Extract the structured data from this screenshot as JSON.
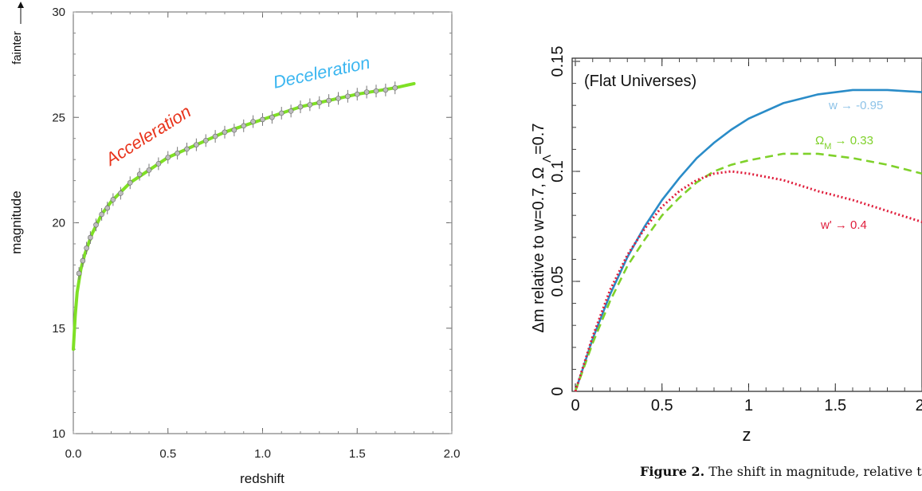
{
  "caption": {
    "label": "Figure 2.",
    "text": "The shift in magnitude, relative to a co"
  },
  "chart_data": [
    {
      "type": "scatter",
      "title": "",
      "xlabel": "redshift",
      "ylabel": "magnitude",
      "side_label": "fainter",
      "xlim": [
        0.0,
        2.0
      ],
      "ylim": [
        10,
        30
      ],
      "xticks": [
        "0.0",
        "0.5",
        "1.0",
        "1.5",
        "2.0"
      ],
      "yticks": [
        "10",
        "15",
        "20",
        "25",
        "30"
      ],
      "grid": false,
      "annotations": [
        {
          "text": "Acceleration",
          "color": "#e8341c"
        },
        {
          "text": "Deceleration",
          "color": "#3bb6f0"
        }
      ],
      "series": [
        {
          "kind": "line",
          "color": "#7fe025",
          "x": [
            0.0,
            0.01,
            0.02,
            0.04,
            0.06,
            0.08,
            0.1,
            0.15,
            0.2,
            0.3,
            0.4,
            0.5,
            0.6,
            0.7,
            0.8,
            0.9,
            1.0,
            1.1,
            1.2,
            1.3,
            1.4,
            1.5,
            1.6,
            1.7,
            1.8
          ],
          "y": [
            14.0,
            15.6,
            16.7,
            17.8,
            18.5,
            19.0,
            19.5,
            20.4,
            21.0,
            21.9,
            22.5,
            23.1,
            23.5,
            23.9,
            24.3,
            24.6,
            24.9,
            25.2,
            25.5,
            25.7,
            25.9,
            26.1,
            26.25,
            26.4,
            26.6
          ]
        },
        {
          "kind": "scatter",
          "color": "#9a9a9a",
          "x": [
            0.03,
            0.05,
            0.07,
            0.09,
            0.12,
            0.15,
            0.18,
            0.21,
            0.25,
            0.3,
            0.35,
            0.4,
            0.45,
            0.5,
            0.55,
            0.6,
            0.65,
            0.7,
            0.75,
            0.8,
            0.85,
            0.9,
            0.95,
            1.0,
            1.05,
            1.1,
            1.15,
            1.2,
            1.25,
            1.3,
            1.35,
            1.4,
            1.45,
            1.5,
            1.55,
            1.6,
            1.65,
            1.7
          ],
          "y": [
            17.6,
            18.2,
            18.8,
            19.3,
            19.9,
            20.4,
            20.7,
            21.1,
            21.4,
            21.9,
            22.3,
            22.5,
            22.8,
            23.1,
            23.3,
            23.5,
            23.7,
            23.9,
            24.1,
            24.3,
            24.4,
            24.6,
            24.8,
            24.9,
            25.0,
            25.2,
            25.3,
            25.5,
            25.6,
            25.7,
            25.8,
            25.9,
            26.0,
            26.1,
            26.2,
            26.25,
            26.3,
            26.4
          ],
          "error": 0.3
        }
      ]
    },
    {
      "type": "line",
      "title": "",
      "xlabel": "z",
      "ylabel": "Δm relative to w=0.7, ΩΛ=0.7",
      "xlim": [
        0,
        2.0
      ],
      "ylim": [
        0,
        0.15
      ],
      "xticks": [
        "0",
        "0.5",
        "1",
        "1.5",
        "2."
      ],
      "yticks": [
        "0",
        "0.05",
        "0.1",
        "0.15"
      ],
      "grid": false,
      "annotations": [
        {
          "text": "(Flat Universes)",
          "color": "#111111"
        }
      ],
      "series": [
        {
          "name": "w → -0.95",
          "color": "#2a8cc8",
          "style": "solid",
          "x": [
            0,
            0.1,
            0.2,
            0.3,
            0.4,
            0.5,
            0.6,
            0.7,
            0.8,
            0.9,
            1.0,
            1.2,
            1.4,
            1.6,
            1.8,
            2.0
          ],
          "y": [
            0,
            0.024,
            0.044,
            0.061,
            0.075,
            0.087,
            0.097,
            0.106,
            0.113,
            0.119,
            0.124,
            0.131,
            0.135,
            0.137,
            0.137,
            0.136
          ]
        },
        {
          "name": "ΩM → 0.33",
          "color": "#7fd12a",
          "style": "dashed",
          "x": [
            0,
            0.1,
            0.2,
            0.3,
            0.4,
            0.5,
            0.6,
            0.7,
            0.8,
            0.9,
            1.0,
            1.2,
            1.4,
            1.6,
            1.8,
            2.0
          ],
          "y": [
            0,
            0.022,
            0.041,
            0.057,
            0.069,
            0.08,
            0.088,
            0.095,
            0.1,
            0.103,
            0.105,
            0.108,
            0.108,
            0.106,
            0.103,
            0.099
          ]
        },
        {
          "name": "w' → 0.4",
          "color": "#e01e3c",
          "style": "dotted",
          "x": [
            0,
            0.1,
            0.2,
            0.3,
            0.4,
            0.5,
            0.6,
            0.7,
            0.8,
            0.9,
            1.0,
            1.2,
            1.4,
            1.6,
            1.8,
            2.0
          ],
          "y": [
            0,
            0.025,
            0.046,
            0.062,
            0.074,
            0.084,
            0.091,
            0.096,
            0.099,
            0.1,
            0.099,
            0.096,
            0.091,
            0.087,
            0.082,
            0.077
          ]
        }
      ]
    }
  ]
}
